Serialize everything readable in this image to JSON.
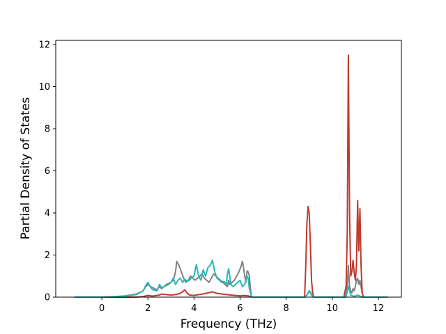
{
  "chart_data": {
    "type": "line",
    "title": "",
    "xlabel": "Frequency (THz)",
    "ylabel": "Partial Density of States",
    "xlim": [
      -2.0,
      13.0
    ],
    "ylim": [
      0,
      12.2
    ],
    "xticks": [
      0,
      2,
      4,
      6,
      8,
      10,
      12
    ],
    "yticks": [
      0,
      2,
      4,
      6,
      8,
      10,
      12
    ],
    "grid": false,
    "legend": "none",
    "series": [
      {
        "color": "#808080",
        "x": [
          -1.2,
          0.0,
          0.5,
          1.0,
          1.5,
          1.8,
          1.9,
          2.0,
          2.2,
          2.4,
          2.5,
          2.6,
          2.8,
          3.0,
          3.1,
          3.2,
          3.25,
          3.35,
          3.45,
          3.55,
          3.65,
          3.75,
          3.85,
          3.95,
          4.05,
          4.15,
          4.25,
          4.35,
          4.45,
          4.55,
          4.65,
          4.75,
          4.85,
          4.95,
          5.05,
          5.15,
          5.25,
          5.35,
          5.45,
          5.5,
          5.55,
          5.65,
          5.75,
          5.85,
          5.95,
          6.05,
          6.1,
          6.15,
          6.2,
          6.25,
          6.3,
          6.35,
          6.4,
          6.45,
          6.5,
          8.8,
          8.9,
          8.95,
          9.0,
          9.05,
          9.1,
          9.2,
          10.5,
          10.6,
          10.65,
          10.7,
          10.75,
          10.8,
          10.85,
          10.9,
          10.95,
          11.0,
          11.05,
          11.1,
          11.15,
          11.2,
          11.25,
          11.3,
          11.35,
          12.4
        ],
        "y": [
          0,
          0,
          0.02,
          0.06,
          0.15,
          0.3,
          0.5,
          0.6,
          0.45,
          0.35,
          0.5,
          0.4,
          0.6,
          0.7,
          0.8,
          1.2,
          1.7,
          1.5,
          1.2,
          0.9,
          0.7,
          0.8,
          1.0,
          0.9,
          0.8,
          0.9,
          1.0,
          1.1,
          0.9,
          0.8,
          0.7,
          0.9,
          1.1,
          1.0,
          0.9,
          0.8,
          0.7,
          0.6,
          0.5,
          0.8,
          0.6,
          0.7,
          0.8,
          1.0,
          1.2,
          1.5,
          1.7,
          1.4,
          1.0,
          0.7,
          1.25,
          1.2,
          1.0,
          0.4,
          0,
          0,
          0.1,
          0.2,
          0.3,
          0.2,
          0.1,
          0,
          0,
          0.2,
          0.5,
          1.5,
          0.5,
          0.3,
          0.2,
          0.4,
          0.3,
          0.5,
          0.8,
          0.9,
          0.6,
          0.8,
          0.5,
          0.2,
          0,
          0
        ]
      },
      {
        "color": "#c0392b",
        "x": [
          -1.2,
          1.5,
          1.8,
          2.0,
          2.2,
          2.5,
          2.6,
          2.8,
          3.0,
          3.2,
          3.4,
          3.5,
          3.6,
          3.7,
          3.8,
          4.0,
          4.2,
          4.4,
          4.6,
          4.8,
          5.0,
          5.2,
          5.4,
          5.6,
          5.8,
          6.0,
          6.2,
          6.4,
          6.5,
          8.8,
          8.85,
          8.9,
          8.95,
          9.0,
          9.05,
          9.1,
          9.15,
          9.2,
          10.5,
          10.6,
          10.65,
          10.7,
          10.75,
          10.8,
          10.85,
          10.9,
          10.95,
          11.0,
          11.05,
          11.1,
          11.15,
          11.2,
          11.25,
          11.3,
          11.35,
          12.4
        ],
        "y": [
          0,
          0,
          0.03,
          0.08,
          0.05,
          0.1,
          0.15,
          0.12,
          0.1,
          0.12,
          0.18,
          0.25,
          0.35,
          0.2,
          0.1,
          0.08,
          0.12,
          0.15,
          0.2,
          0.25,
          0.18,
          0.15,
          0.12,
          0.1,
          0.08,
          0.06,
          0.08,
          0.05,
          0,
          0,
          1.5,
          3.5,
          4.3,
          4.0,
          2.5,
          0.8,
          0.2,
          0,
          0,
          0.5,
          3.0,
          11.5,
          4.0,
          1.0,
          1.2,
          1.75,
          1.2,
          0.8,
          1.5,
          4.6,
          2.2,
          4.2,
          1.5,
          0.2,
          0,
          0
        ]
      },
      {
        "color": "#2ab7b7",
        "x": [
          -1.2,
          0.0,
          0.5,
          1.0,
          1.5,
          1.8,
          1.9,
          2.0,
          2.1,
          2.2,
          2.4,
          2.5,
          2.6,
          2.8,
          2.9,
          3.0,
          3.1,
          3.2,
          3.3,
          3.4,
          3.5,
          3.6,
          3.7,
          3.8,
          3.9,
          4.0,
          4.1,
          4.2,
          4.3,
          4.4,
          4.5,
          4.6,
          4.7,
          4.8,
          4.9,
          5.0,
          5.1,
          5.2,
          5.3,
          5.4,
          5.45,
          5.5,
          5.55,
          5.6,
          5.7,
          5.8,
          5.9,
          6.0,
          6.1,
          6.2,
          6.25,
          6.3,
          6.35,
          6.4,
          6.5,
          8.8,
          8.9,
          8.95,
          9.0,
          9.05,
          9.1,
          9.2,
          10.6,
          10.65,
          10.7,
          10.75,
          10.8,
          10.9,
          11.0,
          11.1,
          11.2,
          11.3,
          12.4
        ],
        "y": [
          0,
          0,
          0.02,
          0.05,
          0.12,
          0.3,
          0.55,
          0.7,
          0.5,
          0.35,
          0.3,
          0.6,
          0.45,
          0.55,
          0.6,
          0.7,
          0.9,
          0.6,
          0.8,
          0.9,
          0.7,
          0.85,
          0.75,
          0.8,
          0.95,
          1.0,
          1.55,
          1.0,
          0.8,
          1.3,
          1.0,
          1.4,
          1.5,
          1.75,
          1.2,
          0.9,
          0.8,
          0.7,
          0.75,
          0.6,
          1.1,
          1.35,
          1.0,
          0.6,
          0.5,
          0.6,
          0.7,
          0.8,
          0.5,
          0.6,
          0.8,
          1.0,
          0.9,
          0.4,
          0,
          0,
          0.1,
          0.2,
          0.3,
          0.25,
          0.1,
          0,
          0,
          0.3,
          0.5,
          0.3,
          0.1,
          0.05,
          0.05,
          0.1,
          0.05,
          0,
          0
        ]
      }
    ]
  }
}
